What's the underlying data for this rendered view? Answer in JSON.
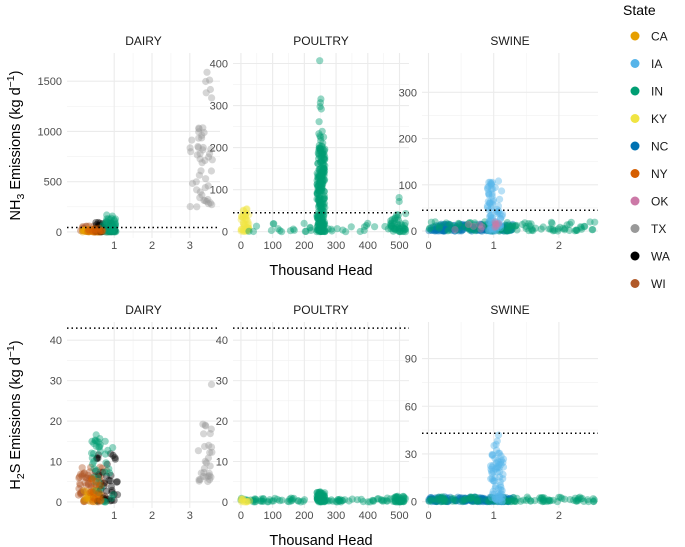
{
  "chart_data": {
    "type": "scatter",
    "legend": {
      "title": "State",
      "position": "right",
      "entries": [
        {
          "state": "CA",
          "color": "#E69F00"
        },
        {
          "state": "IA",
          "color": "#56B4E9"
        },
        {
          "state": "IN",
          "color": "#009E73"
        },
        {
          "state": "KY",
          "color": "#F0E442"
        },
        {
          "state": "NC",
          "color": "#0072B2"
        },
        {
          "state": "NY",
          "color": "#D55E00"
        },
        {
          "state": "OK",
          "color": "#CC79A7"
        },
        {
          "state": "TX",
          "color": "#999999"
        },
        {
          "state": "WA",
          "color": "#000000"
        },
        {
          "state": "WI",
          "color": "#B15928"
        }
      ]
    },
    "shared_xlabel": "Thousand Head",
    "rows": [
      {
        "ylabel_main": "NH",
        "ylabel_sub": "3",
        "ylabel_rest": " Emissions (kg d",
        "ylabel_sup": "−1",
        "ylabel_end": ")",
        "threshold": 45,
        "panels": [
          {
            "title": "DAIRY",
            "xlim": [
              -0.25,
              3.8
            ],
            "ylim": [
              -60,
              1780
            ],
            "xticks": [
              1,
              2,
              3
            ],
            "yticks": [
              0,
              500,
              1000,
              1500
            ],
            "clusters": [
              {
                "state": "TX",
                "x": [
                  3.0,
                  3.6
                ],
                "y": [
                  250,
                  1080
                ],
                "n": 45
              },
              {
                "state": "TX",
                "x": [
                  3.4,
                  3.6
                ],
                "y": [
                  1320,
                  1700
                ],
                "n": 6
              },
              {
                "state": "WI",
                "x": [
                  0.1,
                  0.8
                ],
                "y": [
                  0,
                  65
                ],
                "n": 40
              },
              {
                "state": "CA",
                "x": [
                  0.1,
                  0.65
                ],
                "y": [
                  0,
                  30
                ],
                "n": 35
              },
              {
                "state": "WA",
                "x": [
                  0.4,
                  1.05
                ],
                "y": [
                  0,
                  110
                ],
                "n": 35
              },
              {
                "state": "IN",
                "x": [
                  0.7,
                  1.05
                ],
                "y": [
                  0,
                  170
                ],
                "n": 45
              },
              {
                "state": "NY",
                "x": [
                  0.2,
                  0.7
                ],
                "y": [
                  0,
                  40
                ],
                "n": 15
              }
            ]
          },
          {
            "title": "POULTRY",
            "xlim": [
              -25,
              530
            ],
            "ylim": [
              -15,
              425
            ],
            "xticks": [
              0,
              100,
              200,
              300,
              400,
              500
            ],
            "yticks": [
              0,
              100,
              200,
              300,
              400
            ],
            "clusters": [
              {
                "state": "KY",
                "x": [
                  0,
                  25
                ],
                "y": [
                  0,
                  55
                ],
                "n": 40
              },
              {
                "state": "IN",
                "x": [
                  240,
                  265
                ],
                "y": [
                  0,
                  200
                ],
                "n": 220
              },
              {
                "state": "IN",
                "x": [
                  245,
                  262
                ],
                "y": [
                  200,
                  330
                ],
                "n": 15
              },
              {
                "state": "IN",
                "x": [
                  248,
                  256
                ],
                "y": [
                  400,
                  415
                ],
                "n": 1
              },
              {
                "state": "IN",
                "x": [
                  20,
                  480
                ],
                "y": [
                  0,
                  20
                ],
                "n": 40
              },
              {
                "state": "IN",
                "x": [
                  470,
                  520
                ],
                "y": [
                  0,
                  45
                ],
                "n": 45
              },
              {
                "state": "IN",
                "x": [
                  490,
                  505
                ],
                "y": [
                  60,
                  90
                ],
                "n": 2
              }
            ]
          },
          {
            "title": "SWINE",
            "xlim": [
              -0.1,
              2.6
            ],
            "ylim": [
              -15,
              385
            ],
            "xticks": [
              0,
              1,
              2
            ],
            "yticks": [
              0,
              100,
              200,
              300
            ],
            "clusters": [
              {
                "state": "NC",
                "x": [
                  0,
                  1.3
                ],
                "y": [
                  0,
                  15
                ],
                "n": 180
              },
              {
                "state": "IN",
                "x": [
                  0,
                  2.55
                ],
                "y": [
                  0,
                  20
                ],
                "n": 110
              },
              {
                "state": "IA",
                "x": [
                  0.9,
                  1.15
                ],
                "y": [
                  0,
                  110
                ],
                "n": 70
              },
              {
                "state": "OK",
                "x": [
                  0.4,
                  1.1
                ],
                "y": [
                  0,
                  20
                ],
                "n": 12
              }
            ]
          }
        ]
      },
      {
        "ylabel_main": "H",
        "ylabel_sub": "2",
        "ylabel_rest": "S Emissions (kg d",
        "ylabel_sup": "−1",
        "ylabel_end": ")",
        "threshold": 43,
        "panels": [
          {
            "title": "DAIRY",
            "xlim": [
              -0.25,
              3.8
            ],
            "ylim": [
              -1.5,
              44.5
            ],
            "xticks": [
              1,
              2,
              3
            ],
            "yticks": [
              0,
              10,
              20,
              30,
              40
            ],
            "clusters": [
              {
                "state": "TX",
                "x": [
                  3.2,
                  3.6
                ],
                "y": [
                  5,
                  20
                ],
                "n": 30
              },
              {
                "state": "TX",
                "x": [
                  3.55,
                  3.6
                ],
                "y": [
                  29,
                  30
                ],
                "n": 1
              },
              {
                "state": "WI",
                "x": [
                  0.05,
                  0.8
                ],
                "y": [
                  0,
                  9
                ],
                "n": 80
              },
              {
                "state": "CA",
                "x": [
                  0.2,
                  0.7
                ],
                "y": [
                  0,
                  3
                ],
                "n": 30
              },
              {
                "state": "WA",
                "x": [
                  0.5,
                  1.1
                ],
                "y": [
                  0,
                  12
                ],
                "n": 35
              },
              {
                "state": "IN",
                "x": [
                  0.4,
                  1.0
                ],
                "y": [
                  0,
                  18
                ],
                "n": 40
              },
              {
                "state": "NY",
                "x": [
                  0.3,
                  0.7
                ],
                "y": [
                  0,
                  6
                ],
                "n": 15
              }
            ]
          },
          {
            "title": "POULTRY",
            "xlim": [
              -25,
              530
            ],
            "ylim": [
              -1.5,
              44.5
            ],
            "xticks": [
              0,
              100,
              200,
              300,
              400,
              500
            ],
            "yticks": [
              0,
              10,
              20,
              30,
              40
            ],
            "clusters": [
              {
                "state": "IN",
                "x": [
                  0,
                  520
                ],
                "y": [
                  0,
                  1
                ],
                "n": 90
              },
              {
                "state": "IN",
                "x": [
                  240,
                  265
                ],
                "y": [
                  0,
                  2.5
                ],
                "n": 60
              },
              {
                "state": "KY",
                "x": [
                  0,
                  40
                ],
                "y": [
                  0,
                  0.8
                ],
                "n": 10
              },
              {
                "state": "IN",
                "x": [
                  480,
                  515
                ],
                "y": [
                  0,
                  1.5
                ],
                "n": 30
              }
            ]
          },
          {
            "title": "SWINE",
            "xlim": [
              -0.1,
              2.6
            ],
            "ylim": [
              -4,
              113
            ],
            "xticks": [
              0,
              1,
              2
            ],
            "yticks": [
              0,
              30,
              60,
              90
            ],
            "clusters": [
              {
                "state": "NC",
                "x": [
                  0,
                  1.3
                ],
                "y": [
                  0,
                  3
                ],
                "n": 180
              },
              {
                "state": "IN",
                "x": [
                  0,
                  2.55
                ],
                "y": [
                  0,
                  3
                ],
                "n": 110
              },
              {
                "state": "IA",
                "x": [
                  0.95,
                  1.15
                ],
                "y": [
                  0,
                  33
                ],
                "n": 70
              },
              {
                "state": "IA",
                "x": [
                  1.0,
                  1.1
                ],
                "y": [
                  35,
                  43
                ],
                "n": 4
              }
            ]
          }
        ]
      }
    ]
  }
}
